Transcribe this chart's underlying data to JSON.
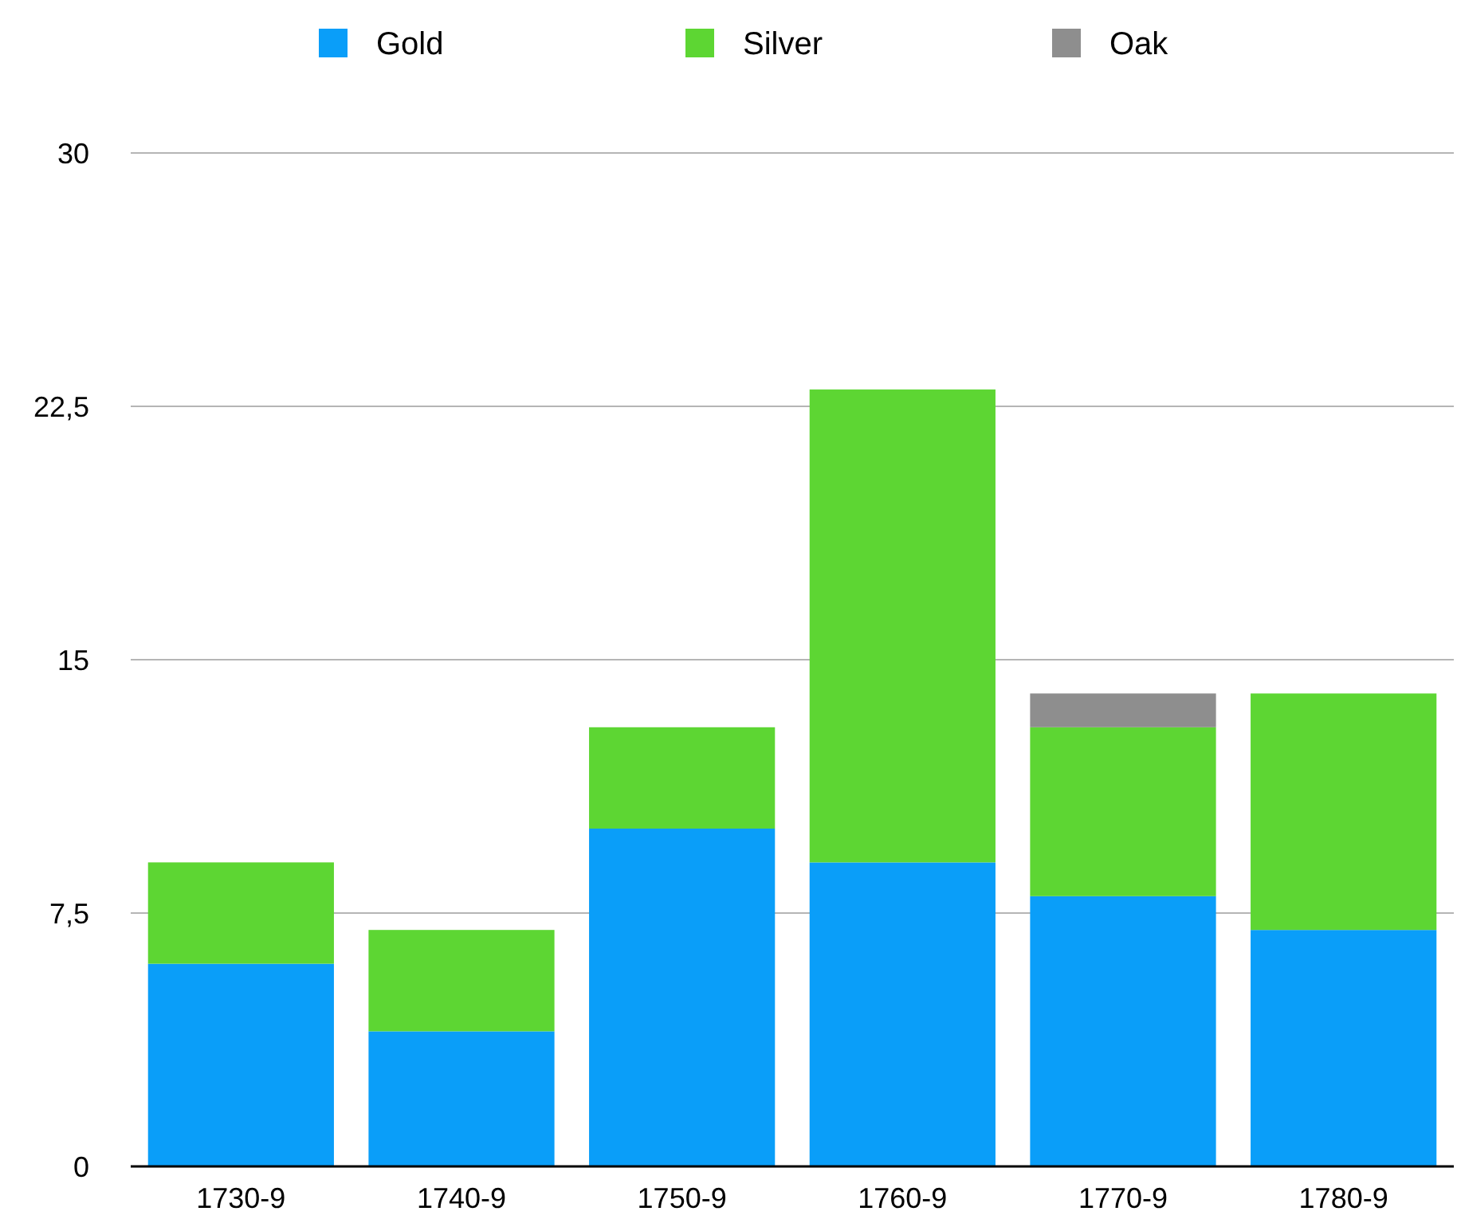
{
  "chart_data": {
    "type": "bar",
    "stacked": true,
    "categories": [
      "1730-9",
      "1740-9",
      "1750-9",
      "1760-9",
      "1770-9",
      "1780-9"
    ],
    "series": [
      {
        "name": "Gold",
        "color": "#0a9ef9",
        "values": [
          6,
          4,
          10,
          9,
          8,
          7
        ]
      },
      {
        "name": "Silver",
        "color": "#5dd633",
        "values": [
          3,
          3,
          3,
          14,
          5,
          7
        ]
      },
      {
        "name": "Oak",
        "color": "#8e8e8e",
        "values": [
          0,
          0,
          0,
          0,
          1,
          0
        ]
      }
    ],
    "ylim": [
      0,
      30
    ],
    "yticks": [
      0,
      {
        "value": 7.5,
        "label": "7,5"
      },
      15,
      {
        "value": 22.5,
        "label": "22,5"
      },
      30
    ],
    "grid": "y",
    "legend": "top"
  }
}
